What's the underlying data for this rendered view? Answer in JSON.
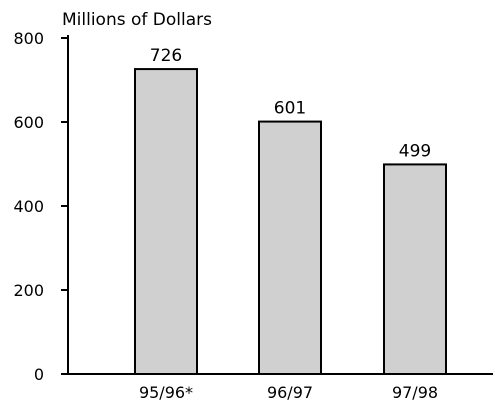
{
  "chart_data": {
    "type": "bar",
    "ylabel": "Millions of Dollars",
    "categories": [
      "95/96*",
      "96/97",
      "97/98"
    ],
    "values": [
      726,
      601,
      499
    ],
    "data_labels": [
      "726",
      "601",
      "499"
    ],
    "yticks": [
      0,
      200,
      400,
      600,
      800
    ],
    "ylim": [
      0,
      800
    ],
    "grid": false,
    "bar_color": "#d0d0d0",
    "bar_edge_color": "#000000"
  }
}
